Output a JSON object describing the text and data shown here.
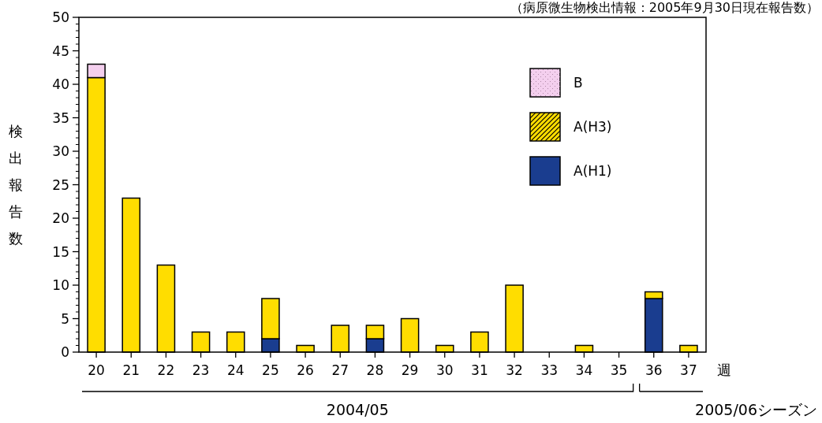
{
  "chart_data": {
    "type": "bar",
    "stacked": true,
    "categories": [
      "20",
      "21",
      "22",
      "23",
      "24",
      "25",
      "26",
      "27",
      "28",
      "29",
      "30",
      "31",
      "32",
      "33",
      "34",
      "35",
      "36",
      "37"
    ],
    "series": [
      {
        "name": "A(H1)",
        "color": "#1a3d8f",
        "values": [
          0,
          0,
          0,
          0,
          0,
          2,
          0,
          0,
          2,
          0,
          0,
          0,
          0,
          0,
          0,
          0,
          8,
          0
        ]
      },
      {
        "name": "A(H3)",
        "color": "#ffdd00",
        "values": [
          41,
          23,
          13,
          3,
          3,
          6,
          1,
          4,
          2,
          5,
          1,
          3,
          10,
          0,
          1,
          0,
          1,
          1
        ]
      },
      {
        "name": "B",
        "color": "#f4cfee",
        "values": [
          2,
          0,
          0,
          0,
          0,
          0,
          0,
          0,
          0,
          0,
          0,
          0,
          0,
          0,
          0,
          0,
          0,
          0
        ]
      }
    ],
    "ylim": [
      0,
      50
    ],
    "yticks": [
      0,
      5,
      10,
      15,
      20,
      25,
      30,
      35,
      40,
      45,
      50
    ],
    "ylabel": "検出報告数",
    "xlabel": "週",
    "legend": "top right",
    "annotations": [
      "（病原微生物検出情報：2005年9月30日現在報告数）",
      "2004/05",
      "2005/06シーズン"
    ]
  }
}
